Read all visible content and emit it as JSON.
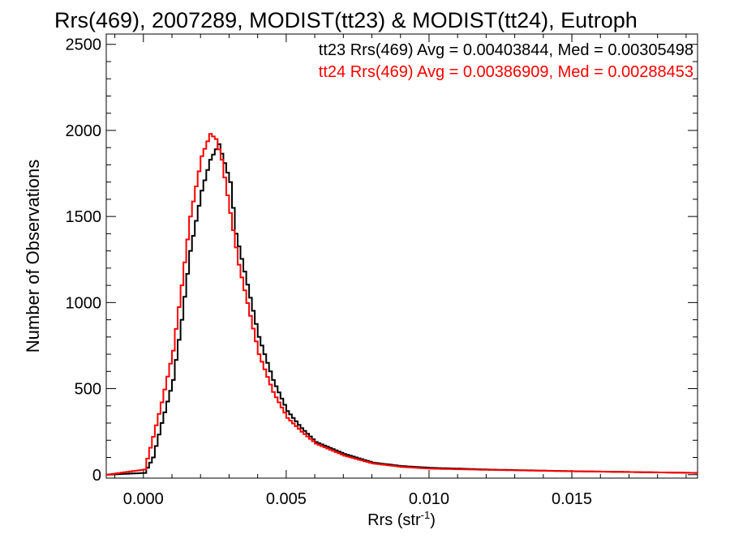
{
  "chart_data": {
    "type": "line",
    "title": "Rrs(469), 2007289, MODIST(tt23) & MODIST(tt24), Eutroph",
    "xlabel_main": "Rrs (str",
    "xlabel_sup": "-1",
    "xlabel_close": ")",
    "ylabel": "Number of Observations",
    "xlim": [
      -0.0013,
      0.0194
    ],
    "ylim": [
      -20,
      2560
    ],
    "xticks": [
      0.0,
      0.005,
      0.01,
      0.015
    ],
    "xtick_labels": [
      "0.000",
      "0.005",
      "0.010",
      "0.015"
    ],
    "yticks": [
      0,
      500,
      1000,
      1500,
      2000,
      2500
    ],
    "ytick_labels": [
      "0",
      "500",
      "1000",
      "1500",
      "2000",
      "2500"
    ],
    "grid": false,
    "legend_position": "top-right",
    "legend": [
      {
        "text": "tt23 Rrs(469) Avg = 0.00403844, Med = 0.00305498",
        "color": "#000000"
      },
      {
        "text": "tt24 Rrs(469) Avg = 0.00386909, Med = 0.00288453",
        "color": "#ff0000"
      }
    ],
    "series": [
      {
        "color": "#000000",
        "x": [
          -0.0013,
          0.0,
          0.0003,
          0.0006,
          0.001,
          0.0013,
          0.0016,
          0.002,
          0.0023,
          0.0026,
          0.003,
          0.0032,
          0.0035,
          0.004,
          0.0045,
          0.005,
          0.0055,
          0.006,
          0.007,
          0.008,
          0.009,
          0.01,
          0.012,
          0.015,
          0.0194
        ],
        "y": [
          0,
          10,
          100,
          300,
          550,
          900,
          1300,
          1650,
          1830,
          1920,
          1700,
          1400,
          1180,
          800,
          550,
          370,
          270,
          190,
          120,
          70,
          50,
          40,
          30,
          20,
          10
        ]
      },
      {
        "color": "#ff0000",
        "x": [
          -0.0013,
          0.0,
          0.0003,
          0.0006,
          0.001,
          0.0013,
          0.0016,
          0.002,
          0.0023,
          0.0025,
          0.0027,
          0.003,
          0.0033,
          0.004,
          0.0045,
          0.005,
          0.0055,
          0.006,
          0.007,
          0.008,
          0.009,
          0.01,
          0.012,
          0.015,
          0.0194
        ],
        "y": [
          0,
          30,
          220,
          420,
          720,
          1100,
          1500,
          1850,
          1980,
          1950,
          1830,
          1520,
          1220,
          700,
          480,
          330,
          250,
          180,
          110,
          65,
          45,
          35,
          28,
          20,
          10
        ]
      }
    ]
  }
}
